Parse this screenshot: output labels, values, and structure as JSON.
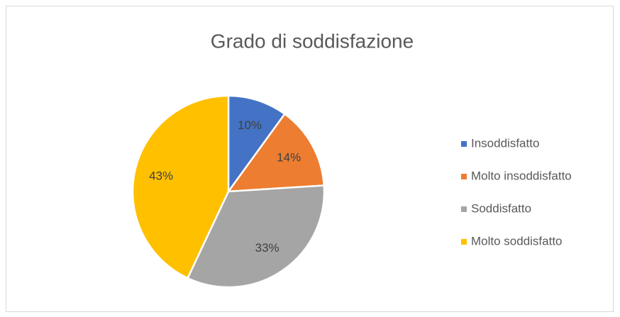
{
  "chart_data": {
    "type": "pie",
    "title": "Grado di soddisfazione",
    "categories": [
      "Insoddisfatto",
      "Molto insoddisfatto",
      "Soddisfatto",
      "Molto soddisfatto"
    ],
    "values": [
      10,
      14,
      33,
      43
    ],
    "value_labels": [
      "10%",
      "14%",
      "33%",
      "43%"
    ],
    "colors": [
      "#4472c4",
      "#ed7d31",
      "#a5a5a5",
      "#ffc000"
    ],
    "legend": "right"
  }
}
